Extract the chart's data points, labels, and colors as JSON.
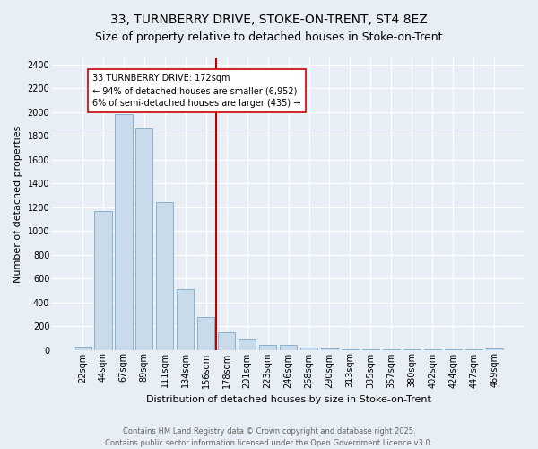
{
  "title": "33, TURNBERRY DRIVE, STOKE-ON-TRENT, ST4 8EZ",
  "subtitle": "Size of property relative to detached houses in Stoke-on-Trent",
  "xlabel": "Distribution of detached houses by size in Stoke-on-Trent",
  "ylabel": "Number of detached properties",
  "footer_line1": "Contains HM Land Registry data © Crown copyright and database right 2025.",
  "footer_line2": "Contains public sector information licensed under the Open Government Licence v3.0.",
  "bar_labels": [
    "22sqm",
    "44sqm",
    "67sqm",
    "89sqm",
    "111sqm",
    "134sqm",
    "156sqm",
    "178sqm",
    "201sqm",
    "223sqm",
    "246sqm",
    "268sqm",
    "290sqm",
    "313sqm",
    "335sqm",
    "357sqm",
    "380sqm",
    "402sqm",
    "424sqm",
    "447sqm",
    "469sqm"
  ],
  "bar_values": [
    25,
    1170,
    1980,
    1860,
    1240,
    510,
    275,
    150,
    90,
    45,
    40,
    20,
    15,
    5,
    3,
    2,
    2,
    1,
    1,
    1,
    15
  ],
  "bar_color": "#c9daea",
  "bar_edgecolor": "#7aaac8",
  "vline_index": 7,
  "vline_color": "#bb0000",
  "annotation_title": "33 TURNBERRY DRIVE: 172sqm",
  "annotation_line1": "← 94% of detached houses are smaller (6,952)",
  "annotation_line2": "6% of semi-detached houses are larger (435) →",
  "annotation_box_facecolor": "#ffffff",
  "annotation_box_edgecolor": "#cc0000",
  "ylim": [
    0,
    2450
  ],
  "yticks": [
    0,
    200,
    400,
    600,
    800,
    1000,
    1200,
    1400,
    1600,
    1800,
    2000,
    2200,
    2400
  ],
  "background_color": "#e8eef5",
  "plot_bg_color": "#e8eef5",
  "title_fontsize": 10,
  "subtitle_fontsize": 9,
  "ylabel_fontsize": 8,
  "xlabel_fontsize": 8,
  "tick_fontsize": 7,
  "footer_fontsize": 6,
  "footer_color": "#666666"
}
